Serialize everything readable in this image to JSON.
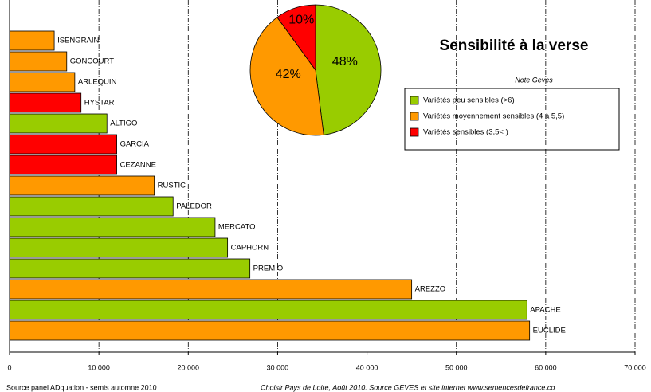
{
  "chart_data": [
    {
      "type": "bar",
      "orientation": "horizontal",
      "title": "Sensibilité à la verse",
      "categories": [
        "ISENGRAIN",
        "GONCOURT",
        "ARLEQUIN",
        "HYSTAR",
        "ALTIGO",
        "GARCIA",
        "CEZANNE",
        "RUSTIC",
        "PALEDOR",
        "MERCATO",
        "CAPHORN",
        "PREMIO",
        "AREZZO",
        "APACHE",
        "EUCLIDE"
      ],
      "values": [
        5000,
        6400,
        7300,
        8000,
        10900,
        12000,
        12000,
        16200,
        18300,
        23000,
        24400,
        26900,
        45000,
        57900,
        58200
      ],
      "colors": [
        "#ff9900",
        "#ff9900",
        "#ff9900",
        "#ff0000",
        "#99cc00",
        "#ff0000",
        "#ff0000",
        "#ff9900",
        "#99cc00",
        "#99cc00",
        "#99cc00",
        "#99cc00",
        "#ff9900",
        "#99cc00",
        "#ff9900"
      ],
      "xlim": [
        0,
        70000
      ],
      "xticks": [
        0,
        {
          "value": 10000,
          "label": "10 000"
        },
        {
          "value": 20000,
          "label": "20 000"
        },
        {
          "value": 30000,
          "label": "30 000"
        },
        {
          "value": 40000,
          "label": "40 000"
        },
        {
          "value": 50000,
          "label": "50 000"
        },
        {
          "value": 60000,
          "label": "60 000"
        },
        {
          "value": 70000,
          "label": "70 000"
        }
      ],
      "grid": true,
      "legend_title": "Note Geves",
      "legend": [
        {
          "name": "Variétés peu sensibles (>6)",
          "color": "#99cc00"
        },
        {
          "name": "Variétés moyennement sensibles (4 à 5,5)",
          "color": "#ff9900"
        },
        {
          "name": "Variétés sensibles (3,5< )",
          "color": "#ff0000"
        }
      ]
    },
    {
      "type": "pie",
      "values": [
        48,
        42,
        10
      ],
      "value_labels": [
        "48%",
        "42%",
        "10%"
      ],
      "colors": [
        "#99cc00",
        "#ff9900",
        "#ff0000"
      ]
    }
  ],
  "notes": [
    "Source panel ADquation - semis automne 2010",
    "Choisir Pays de Loire, Août 2010. Source GEVES et site internet www.semencesdefrance.co"
  ]
}
